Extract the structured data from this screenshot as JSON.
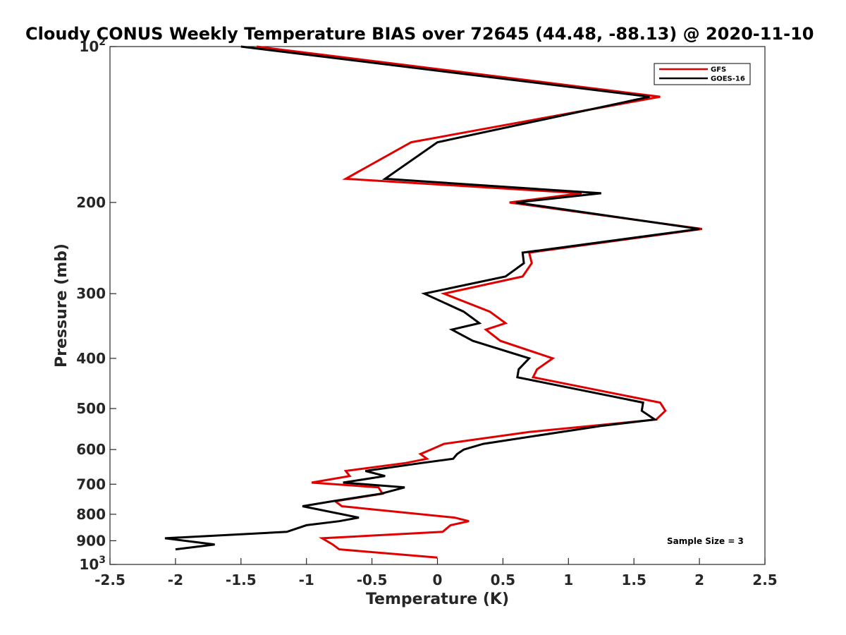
{
  "chart_data": {
    "type": "line",
    "title": "Cloudy CONUS Weekly Temperature BIAS over 72645 (44.48, -88.13) @ 2020-11-10",
    "xlabel": "Temperature (K)",
    "ylabel": "Pressure (mb)",
    "xlim": [
      -2.5,
      2.5
    ],
    "ylim": [
      100,
      1000
    ],
    "y_scale": "log",
    "y_reversed": true,
    "grid": false,
    "legend_position": "top-right",
    "x_ticks": [
      -2.5,
      -2,
      -1.5,
      -1,
      -0.5,
      0,
      0.5,
      1,
      1.5,
      2,
      2.5
    ],
    "x_tick_labels": [
      "-2.5",
      "-2",
      "-1.5",
      "-1",
      "-0.5",
      "0",
      "0.5",
      "1",
      "1.5",
      "2",
      "2.5"
    ],
    "y_ticks": [
      {
        "value": 100,
        "base": "10",
        "exp": "2"
      },
      {
        "value": 200,
        "label": "200"
      },
      {
        "value": 300,
        "label": "300"
      },
      {
        "value": 400,
        "label": "400"
      },
      {
        "value": 500,
        "label": "500"
      },
      {
        "value": 600,
        "label": "600"
      },
      {
        "value": 700,
        "label": "700"
      },
      {
        "value": 800,
        "label": "800"
      },
      {
        "value": 900,
        "label": "900"
      },
      {
        "value": 1000,
        "base": "10",
        "exp": "3"
      }
    ],
    "annotation": "Sample Size = 3",
    "series": [
      {
        "name": "GFS",
        "color": "#e00000",
        "points": [
          [
            -1.38,
            100
          ],
          [
            1.7,
            125
          ],
          [
            -0.2,
            153
          ],
          [
            -0.7,
            180
          ],
          [
            1.1,
            192
          ],
          [
            0.55,
            200
          ],
          [
            2.02,
            225
          ],
          [
            0.7,
            250
          ],
          [
            0.72,
            262
          ],
          [
            0.65,
            278
          ],
          [
            0.05,
            300
          ],
          [
            0.4,
            325
          ],
          [
            0.52,
            342
          ],
          [
            0.37,
            352
          ],
          [
            0.48,
            370
          ],
          [
            0.88,
            400
          ],
          [
            0.76,
            420
          ],
          [
            0.73,
            435
          ],
          [
            1.7,
            487
          ],
          [
            1.74,
            505
          ],
          [
            1.67,
            525
          ],
          [
            0.7,
            555
          ],
          [
            0.05,
            585
          ],
          [
            -0.05,
            600
          ],
          [
            -0.13,
            612
          ],
          [
            -0.08,
            625
          ],
          [
            -0.24,
            637
          ],
          [
            -0.7,
            660
          ],
          [
            -0.67,
            675
          ],
          [
            -0.96,
            695
          ],
          [
            -0.45,
            710
          ],
          [
            -0.42,
            730
          ],
          [
            -0.78,
            755
          ],
          [
            -0.73,
            772
          ],
          [
            0.13,
            812
          ],
          [
            0.24,
            825
          ],
          [
            0.1,
            840
          ],
          [
            0.04,
            865
          ],
          [
            -0.88,
            890
          ],
          [
            -0.8,
            915
          ],
          [
            -0.75,
            935
          ],
          [
            0,
            970
          ]
        ]
      },
      {
        "name": "GOES-16",
        "color": "#000000",
        "points": [
          [
            -1.5,
            100
          ],
          [
            1.62,
            125
          ],
          [
            0,
            153
          ],
          [
            -0.4,
            180
          ],
          [
            1.25,
            192
          ],
          [
            0.6,
            200
          ],
          [
            2.0,
            225
          ],
          [
            0.65,
            250
          ],
          [
            0.66,
            262
          ],
          [
            0.52,
            278
          ],
          [
            -0.1,
            300
          ],
          [
            0.2,
            325
          ],
          [
            0.32,
            342
          ],
          [
            0.11,
            352
          ],
          [
            0.27,
            370
          ],
          [
            0.7,
            400
          ],
          [
            0.62,
            420
          ],
          [
            0.61,
            435
          ],
          [
            1.57,
            487
          ],
          [
            1.56,
            505
          ],
          [
            1.66,
            525
          ],
          [
            1.25,
            540
          ],
          [
            0.35,
            585
          ],
          [
            0.2,
            600
          ],
          [
            0.15,
            612
          ],
          [
            0.12,
            625
          ],
          [
            -0.12,
            637
          ],
          [
            -0.55,
            660
          ],
          [
            -0.4,
            675
          ],
          [
            -0.72,
            695
          ],
          [
            -0.25,
            710
          ],
          [
            -0.43,
            730
          ],
          [
            -0.8,
            755
          ],
          [
            -1.03,
            772
          ],
          [
            -0.6,
            812
          ],
          [
            -0.75,
            825
          ],
          [
            -1.0,
            840
          ],
          [
            -1.15,
            865
          ],
          [
            -2.08,
            890
          ],
          [
            -1.7,
            915
          ],
          [
            -2.0,
            935
          ]
        ]
      }
    ]
  }
}
